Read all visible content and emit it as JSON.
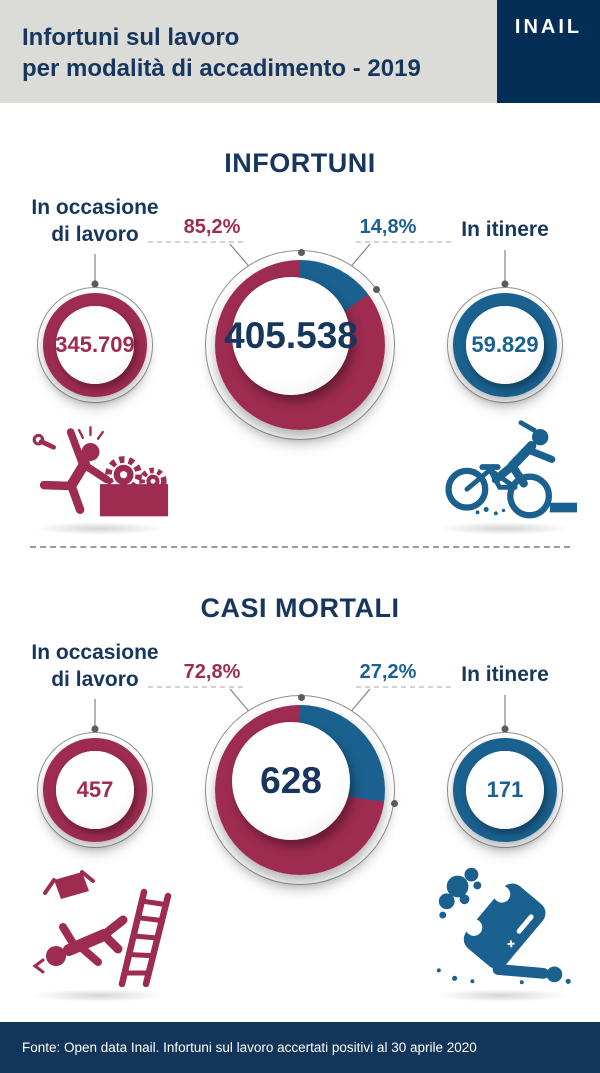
{
  "colors": {
    "crimson": "#9E2B50",
    "blue": "#1A618F",
    "navy_text": "#17365D",
    "header_bg": "#DBDBD8",
    "logo_bg": "#042E55",
    "footer_bg": "#123659"
  },
  "header": {
    "title_line1": "Infortuni sul lavoro",
    "title_line2": "per modalità di accadimento - 2019",
    "logo_text": "INAIL"
  },
  "sections": [
    {
      "title": "INFORTUNI",
      "left": {
        "label_line1": "In occasione",
        "label_line2": "di lavoro",
        "value": "345.709"
      },
      "center": {
        "pct_left": "85,2%",
        "pct_right": "14,8%",
        "value": "405.538"
      },
      "right": {
        "label": "In itinere",
        "value": "59.829"
      },
      "icon_left": "worker falling into machine gears",
      "icon_right": "cyclist crashing on curb"
    },
    {
      "title": "CASI MORTALI",
      "left": {
        "label_line1": "In occasione",
        "label_line2": "di lavoro",
        "value": "457"
      },
      "center": {
        "pct_left": "72,8%",
        "pct_right": "27,2%",
        "value": "628"
      },
      "right": {
        "label": "In itinere",
        "value": "171"
      },
      "icon_left": "worker falling from ladder with box",
      "icon_right": "overturned car crash with person"
    }
  ],
  "footer": {
    "source": "Fonte: Open data Inail. Infortuni sul lavoro accertati positivi al 30 aprile 2020"
  },
  "chart_data": [
    {
      "type": "pie",
      "title": "INFORTUNI",
      "total": 405538,
      "total_label": "405.538",
      "legend_position": "callouts above donut",
      "start": "12 o'clock, clockwise, blue slice first",
      "slices": [
        {
          "label": "In itinere",
          "value": 59829,
          "pct": 14.8,
          "color": "#1A618F"
        },
        {
          "label": "In occasione di lavoro",
          "value": 345709,
          "pct": 85.2,
          "color": "#9E2B50"
        }
      ]
    },
    {
      "type": "pie",
      "title": "CASI MORTALI",
      "total": 628,
      "total_label": "628",
      "legend_position": "callouts above donut",
      "start": "12 o'clock, clockwise, blue slice first",
      "slices": [
        {
          "label": "In itinere",
          "value": 171,
          "pct": 27.2,
          "color": "#1A618F"
        },
        {
          "label": "In occasione di lavoro",
          "value": 457,
          "pct": 72.8,
          "color": "#9E2B50"
        }
      ]
    }
  ]
}
